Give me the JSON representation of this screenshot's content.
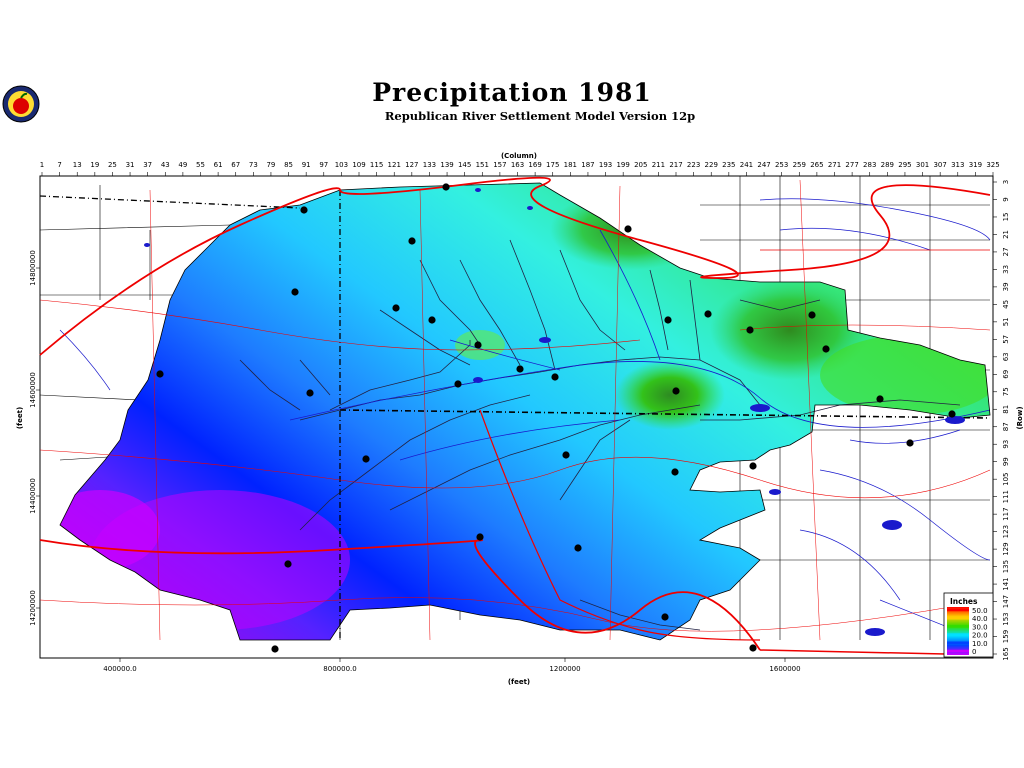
{
  "title": "Precipitation  1981",
  "subtitle": "Republican  River  Settlement  Model  Version  12p",
  "logo_icon": "apple-seal-icon",
  "axes": {
    "column_label": "(Column)",
    "row_label": "(Row)",
    "x_label": "(feet)",
    "y_label": "(feet)",
    "column_ticks": [
      "1",
      "7",
      "13",
      "19",
      "25",
      "31",
      "37",
      "43",
      "49",
      "55",
      "61",
      "67",
      "73",
      "79",
      "85",
      "91",
      "97",
      "103",
      "109",
      "115",
      "121",
      "127",
      "133",
      "139",
      "145",
      "151",
      "157",
      "163",
      "169",
      "175",
      "181",
      "187",
      "193",
      "199",
      "205",
      "211",
      "217",
      "223",
      "229",
      "235",
      "241",
      "247",
      "253",
      "259",
      "265",
      "271",
      "277",
      "283",
      "289",
      "295",
      "301",
      "307",
      "313",
      "319",
      "325"
    ],
    "row_ticks": [
      "3",
      "9",
      "15",
      "21",
      "27",
      "33",
      "39",
      "45",
      "51",
      "57",
      "63",
      "69",
      "75",
      "81",
      "87",
      "93",
      "99",
      "105",
      "111",
      "117",
      "123",
      "129",
      "135",
      "141",
      "147",
      "153",
      "159",
      "165"
    ],
    "x_ticks": [
      "400000.0",
      "800000.0",
      "1200000",
      "1600000"
    ],
    "y_ticks": [
      "14800000",
      "14600000",
      "14400000",
      "14200000"
    ]
  },
  "legend": {
    "title": "Inches",
    "entries": [
      {
        "label": "50.0",
        "color": "#ff0000"
      },
      {
        "label": "40.0",
        "color": "#ffcc00"
      },
      {
        "label": "30.0",
        "color": "#33dd00"
      },
      {
        "label": "20.0",
        "color": "#00e0ff"
      },
      {
        "label": "10.0",
        "color": "#0044ff"
      },
      {
        "label": "0",
        "color": "#cc00ff"
      }
    ]
  },
  "colors": {
    "roads": "#ee0000",
    "rivers": "#0000cc",
    "boundaries": "#000000",
    "stations": "#000000"
  }
}
